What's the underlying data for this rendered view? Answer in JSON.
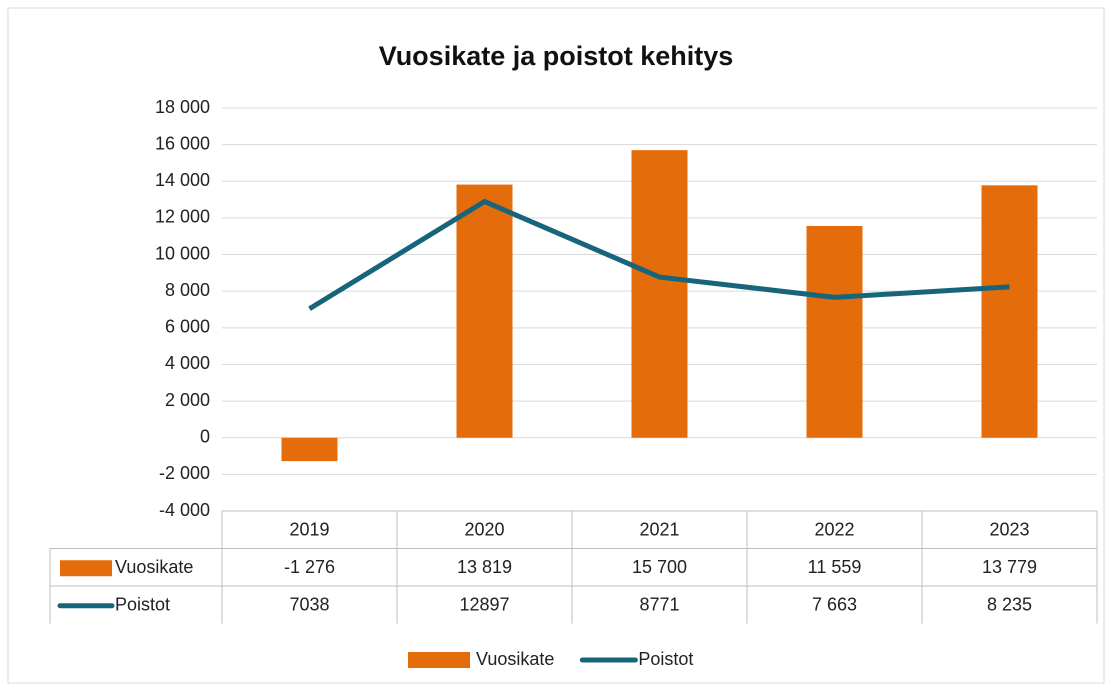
{
  "chart_data": {
    "type": "combo",
    "title": "Vuosikate ja poistot kehitys",
    "categories": [
      "2019",
      "2020",
      "2021",
      "2022",
      "2023"
    ],
    "series": [
      {
        "name": "Vuosikate",
        "type": "bar",
        "color": "#e46c0a",
        "values": [
          -1276,
          13819,
          15700,
          11559,
          13779
        ],
        "value_labels": [
          "-1 276",
          "13 819",
          "15 700",
          "11 559",
          "13 779"
        ]
      },
      {
        "name": "Poistot",
        "type": "line",
        "color": "#17657a",
        "values": [
          7038,
          12897,
          8771,
          7663,
          8235
        ],
        "value_labels": [
          "7038",
          "12897",
          "8771",
          "7 663",
          "8 235"
        ]
      }
    ],
    "ylim": [
      -4000,
      18000
    ],
    "yticks": [
      {
        "value": -4000,
        "label": "-4 000"
      },
      {
        "value": -2000,
        "label": "-2 000"
      },
      0,
      {
        "value": 2000,
        "label": "2 000"
      },
      {
        "value": 4000,
        "label": "4 000"
      },
      {
        "value": 6000,
        "label": "6 000"
      },
      {
        "value": 8000,
        "label": "8 000"
      },
      {
        "value": 10000,
        "label": "10 000"
      },
      {
        "value": 12000,
        "label": "12 000"
      },
      {
        "value": 14000,
        "label": "14 000"
      },
      {
        "value": 16000,
        "label": "16 000"
      },
      {
        "value": 18000,
        "label": "18 000"
      }
    ],
    "grid": true,
    "legend": "bottom",
    "data_table": true
  }
}
